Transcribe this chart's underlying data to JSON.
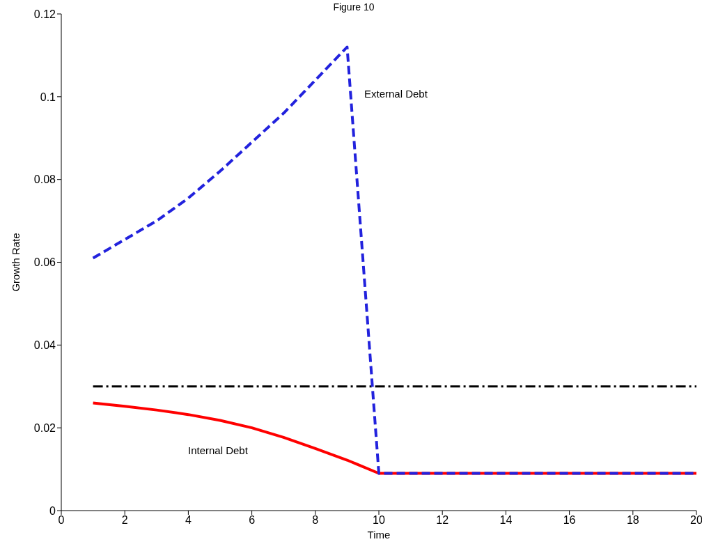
{
  "chart_data": {
    "type": "line",
    "title": "Figure 10",
    "xlabel": "Time",
    "ylabel": "Growth Rate",
    "x": [
      1,
      2,
      3,
      4,
      5,
      6,
      7,
      8,
      9,
      10,
      11,
      12,
      13,
      14,
      15,
      16,
      17,
      18,
      19,
      20
    ],
    "series": [
      {
        "color": "#000000",
        "line_style": "dashed",
        "values": [
          0.03,
          0.03,
          0.03,
          0.03,
          0.03,
          0.03,
          0.03,
          0.03,
          0.03,
          0.03,
          0.03,
          0.03,
          0.03,
          0.03,
          0.03,
          0.03,
          0.03,
          0.03,
          0.03,
          0.03
        ]
      },
      {
        "color": "#ff0000",
        "line_style": "solid",
        "values": [
          0.026,
          0.0252,
          0.0243,
          0.0232,
          0.0218,
          0.02,
          0.0177,
          0.015,
          0.0122,
          0.009,
          0.009,
          0.009,
          0.009,
          0.009,
          0.009,
          0.009,
          0.009,
          0.009,
          0.009,
          0.009
        ]
      },
      {
        "color": "#2222dd",
        "line_style": "dashed",
        "values": [
          0.061,
          0.0655,
          0.07,
          0.0755,
          0.082,
          0.089,
          0.096,
          0.104,
          0.112,
          0.009,
          0.009,
          0.009,
          0.009,
          0.009,
          0.009,
          0.009,
          0.009,
          0.009,
          0.009,
          0.009
        ]
      }
    ],
    "annotations": [
      "External Debt",
      "Internal Debt"
    ],
    "xlim": [
      0,
      20
    ],
    "xticks": [
      0,
      2,
      4,
      6,
      8,
      10,
      12,
      14,
      16,
      18,
      20
    ],
    "ylim": [
      0,
      0.12
    ],
    "yticks": [
      0,
      0.02,
      0.04,
      0.06,
      0.08,
      0.1,
      0.12
    ],
    "grid": false,
    "legend": false,
    "marker": "none"
  }
}
